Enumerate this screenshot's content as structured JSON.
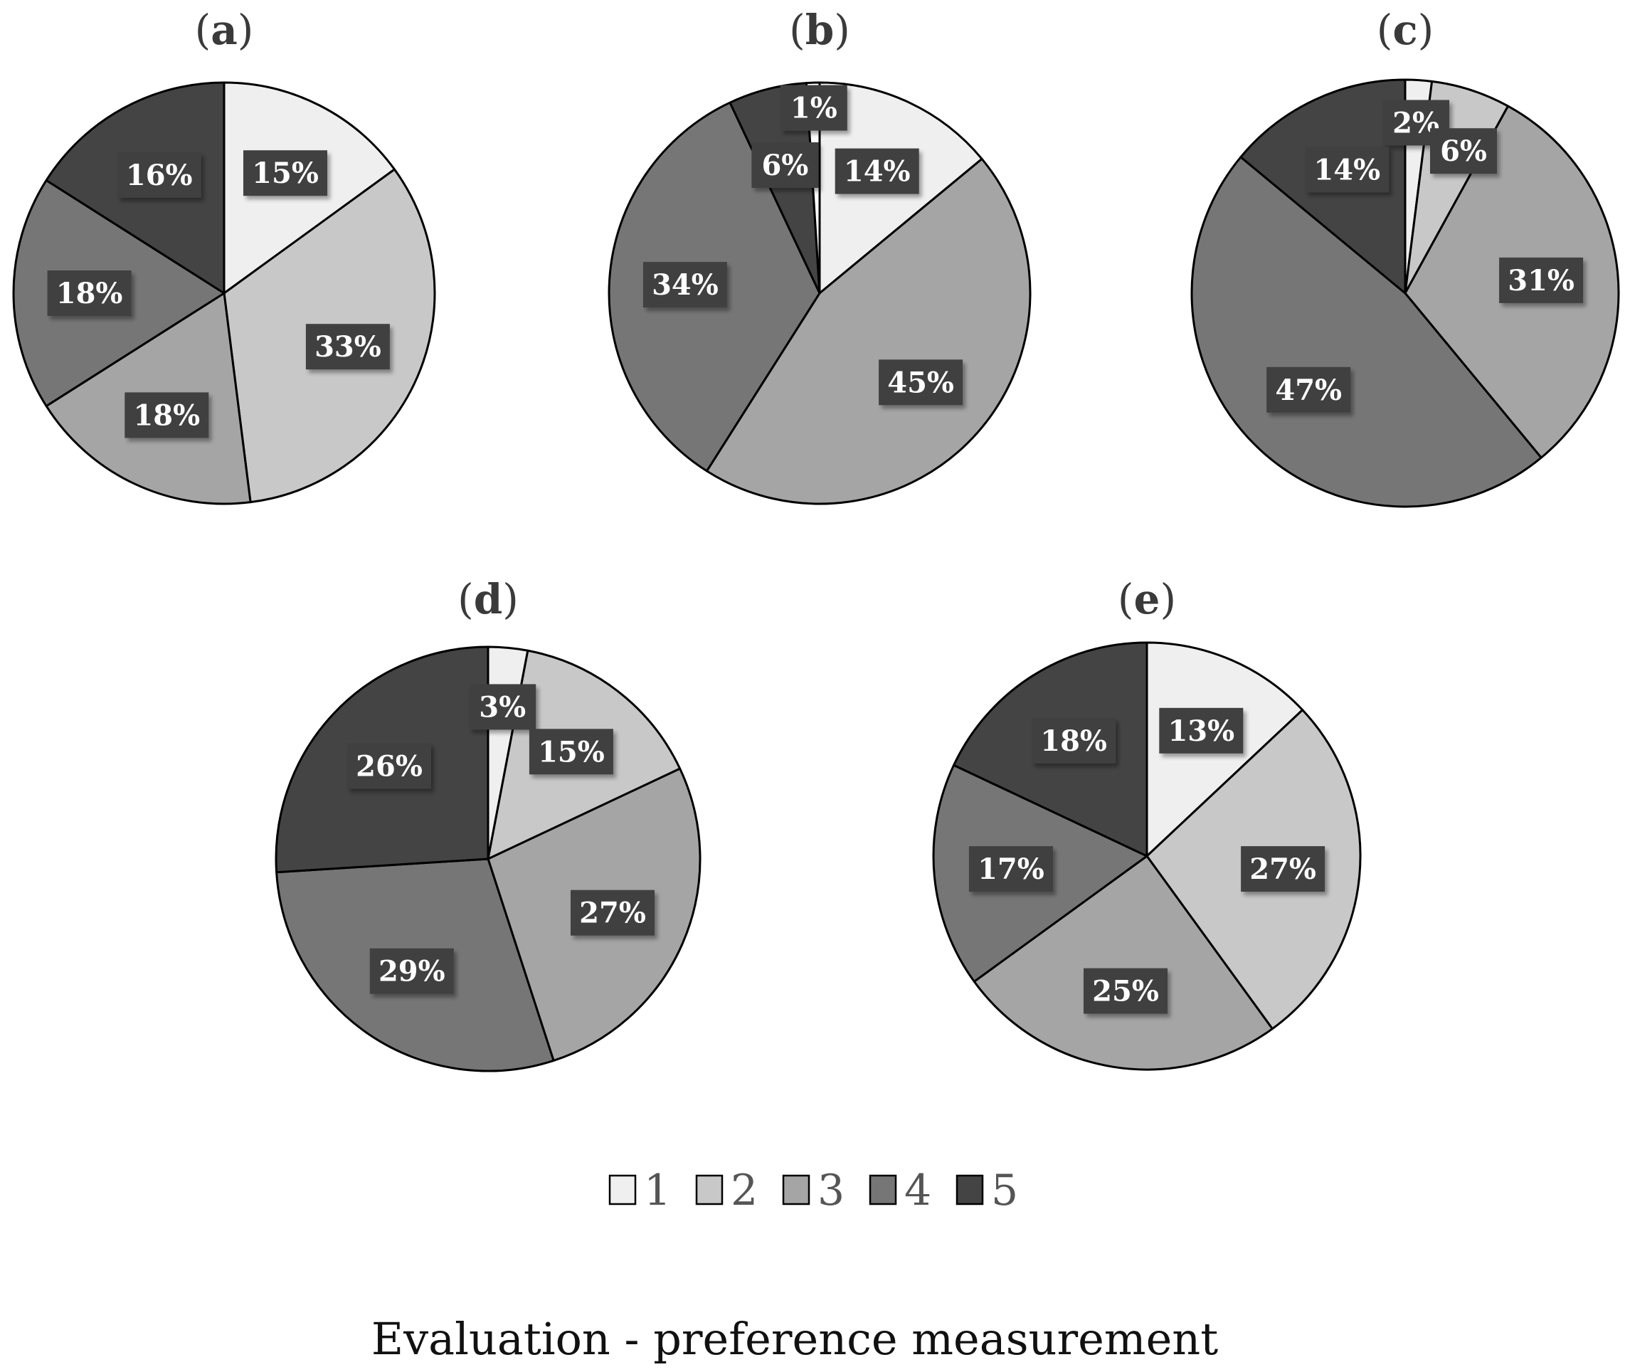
{
  "chart_data": [
    {
      "type": "pie",
      "panel": "a",
      "slices": [
        {
          "category": "1",
          "value": 15,
          "label": "15%"
        },
        {
          "category": "2",
          "value": 33,
          "label": "33%"
        },
        {
          "category": "3",
          "value": 18,
          "label": "18%"
        },
        {
          "category": "4",
          "value": 18,
          "label": "18%"
        },
        {
          "category": "5",
          "value": 16,
          "label": "16%"
        }
      ]
    },
    {
      "type": "pie",
      "panel": "b",
      "slices": [
        {
          "category": "1",
          "value": 14,
          "label": "14%"
        },
        {
          "category": "2",
          "value": 0,
          "label": ""
        },
        {
          "category": "3",
          "value": 45,
          "label": "45%"
        },
        {
          "category": "4",
          "value": 34,
          "label": "34%"
        },
        {
          "category": "5",
          "value": 6,
          "label": "6%"
        },
        {
          "category": "",
          "value": 1,
          "label": "1%"
        }
      ]
    },
    {
      "type": "pie",
      "panel": "c",
      "slices": [
        {
          "category": "1",
          "value": 2,
          "label": "2%"
        },
        {
          "category": "2",
          "value": 6,
          "label": "6%"
        },
        {
          "category": "3",
          "value": 31,
          "label": "31%"
        },
        {
          "category": "4",
          "value": 47,
          "label": "47%"
        },
        {
          "category": "5",
          "value": 14,
          "label": "14%"
        }
      ]
    },
    {
      "type": "pie",
      "panel": "d",
      "slices": [
        {
          "category": "1",
          "value": 3,
          "label": "3%"
        },
        {
          "category": "2",
          "value": 15,
          "label": "15%"
        },
        {
          "category": "3",
          "value": 27,
          "label": "27%"
        },
        {
          "category": "4",
          "value": 29,
          "label": "29%"
        },
        {
          "category": "5",
          "value": 26,
          "label": "26%"
        }
      ]
    },
    {
      "type": "pie",
      "panel": "e",
      "slices": [
        {
          "category": "1",
          "value": 13,
          "label": "13%"
        },
        {
          "category": "2",
          "value": 27,
          "label": "27%"
        },
        {
          "category": "3",
          "value": 25,
          "label": "25%"
        },
        {
          "category": "4",
          "value": 17,
          "label": "17%"
        },
        {
          "category": "5",
          "value": 18,
          "label": "18%"
        }
      ]
    }
  ],
  "legend": {
    "placement": "bottom-center",
    "items": [
      {
        "label": "1",
        "color": "#efefef"
      },
      {
        "label": "2",
        "color": "#c8c8c8"
      },
      {
        "label": "3",
        "color": "#a5a5a5"
      },
      {
        "label": "4",
        "color": "#767676"
      },
      {
        "label": "5",
        "color": "#444444"
      }
    ]
  },
  "colors": {
    "slice_outline": "#000000",
    "label_box": "#404040",
    "label_text": "#ffffff",
    "extra_slice": "#ffffff"
  },
  "caption": "Evaluation - preference measurement"
}
